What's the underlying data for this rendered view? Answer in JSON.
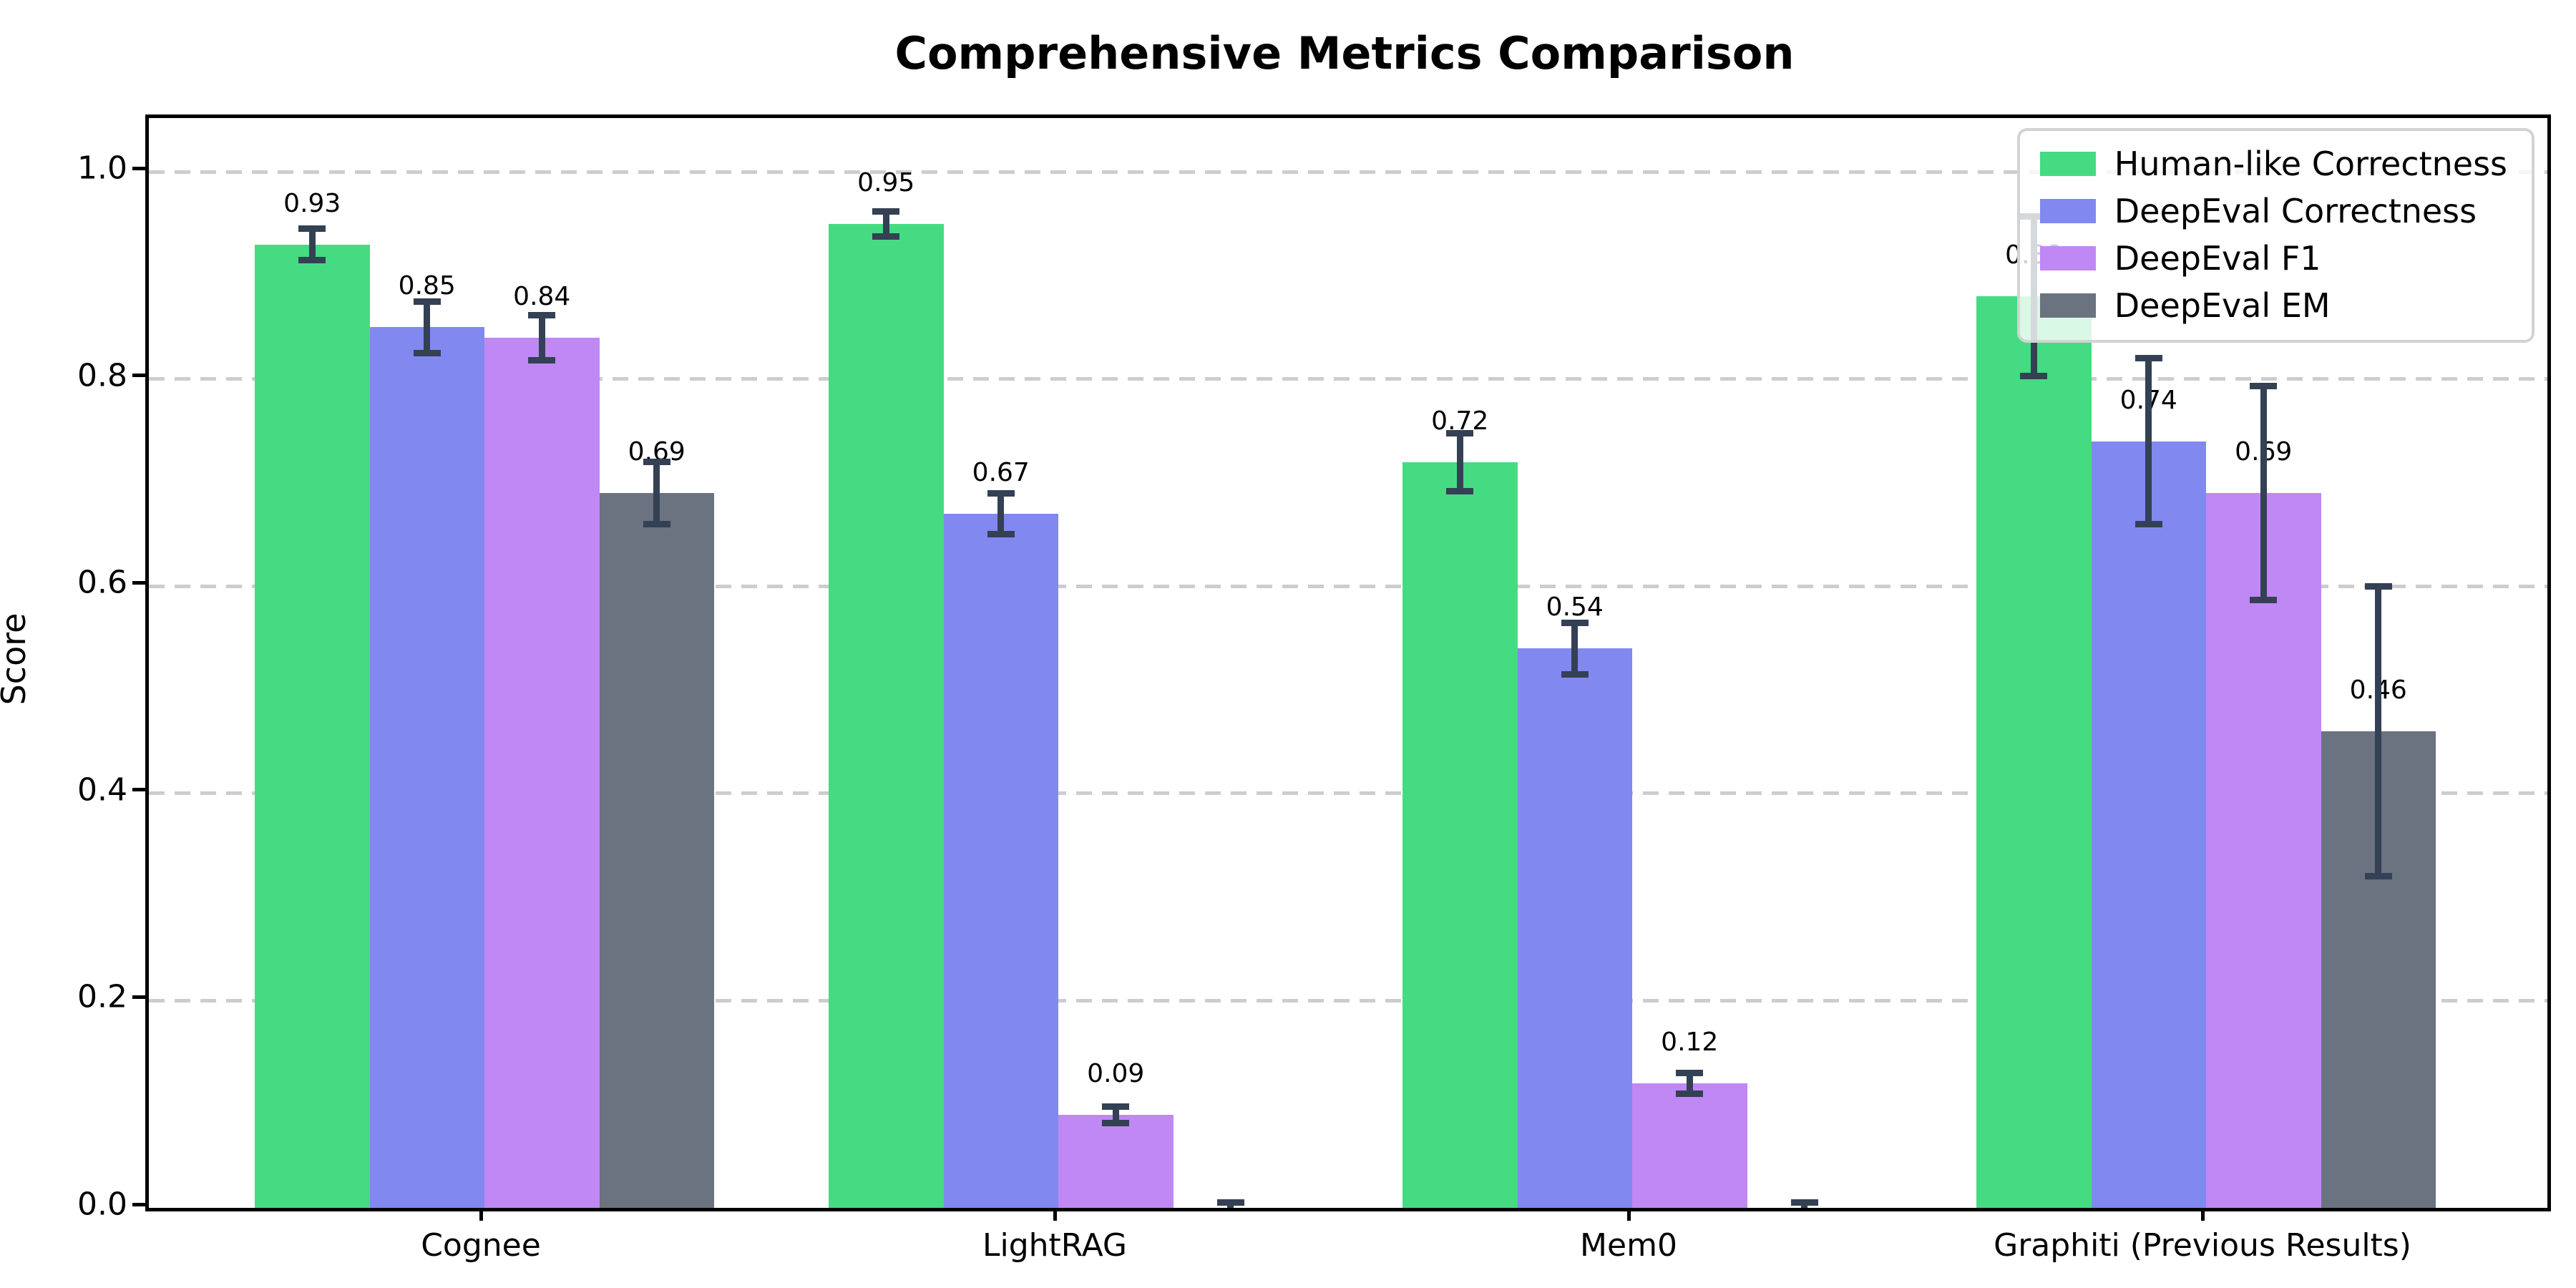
{
  "chart_data": {
    "type": "bar",
    "title": "Comprehensive Metrics Comparison",
    "ylabel": "Score",
    "xlabel": "",
    "ylim": [
      0,
      1.05
    ],
    "grid": "horizontal dashed",
    "legend_position": "upper right",
    "yticks": [
      0.0,
      0.2,
      0.4,
      0.6,
      0.8,
      1.0
    ],
    "ytick_labels": [
      "0.0",
      "0.2",
      "0.4",
      "0.6",
      "0.8",
      "1.0"
    ],
    "categories": [
      "Cognee",
      "LightRAG",
      "Mem0",
      "Graphiti (Previous Results)"
    ],
    "series": [
      {
        "name": "Human-like Correctness",
        "color": "#45db82",
        "values": [
          0.93,
          0.95,
          0.72,
          0.88
        ],
        "errors": [
          0.015,
          0.012,
          0.028,
          0.077
        ],
        "labels": [
          "0.93",
          "0.95",
          "0.72",
          "0.88"
        ]
      },
      {
        "name": "DeepEval Correctness",
        "color": "#8189f0",
        "values": [
          0.85,
          0.67,
          0.54,
          0.74
        ],
        "errors": [
          0.025,
          0.02,
          0.025,
          0.08
        ],
        "labels": [
          "0.85",
          "0.67",
          "0.54",
          "0.74"
        ]
      },
      {
        "name": "DeepEval F1",
        "color": "#c088f5",
        "values": [
          0.84,
          0.09,
          0.12,
          0.69
        ],
        "errors": [
          0.022,
          0.008,
          0.01,
          0.103
        ],
        "labels": [
          "0.84",
          "0.09",
          "0.12",
          "0.69"
        ]
      },
      {
        "name": "DeepEval EM",
        "color": "#6b7280",
        "values": [
          0.69,
          0.0,
          0.0,
          0.46
        ],
        "errors": [
          0.03,
          0.005,
          0.005,
          0.14
        ],
        "labels": [
          "0.69",
          "",
          "",
          "0.46"
        ]
      }
    ],
    "colors": {
      "error_bar": "#344053",
      "grid_line": "#cdcdcd",
      "axes": "#000000",
      "legend_border": "#d3d3d3"
    }
  }
}
